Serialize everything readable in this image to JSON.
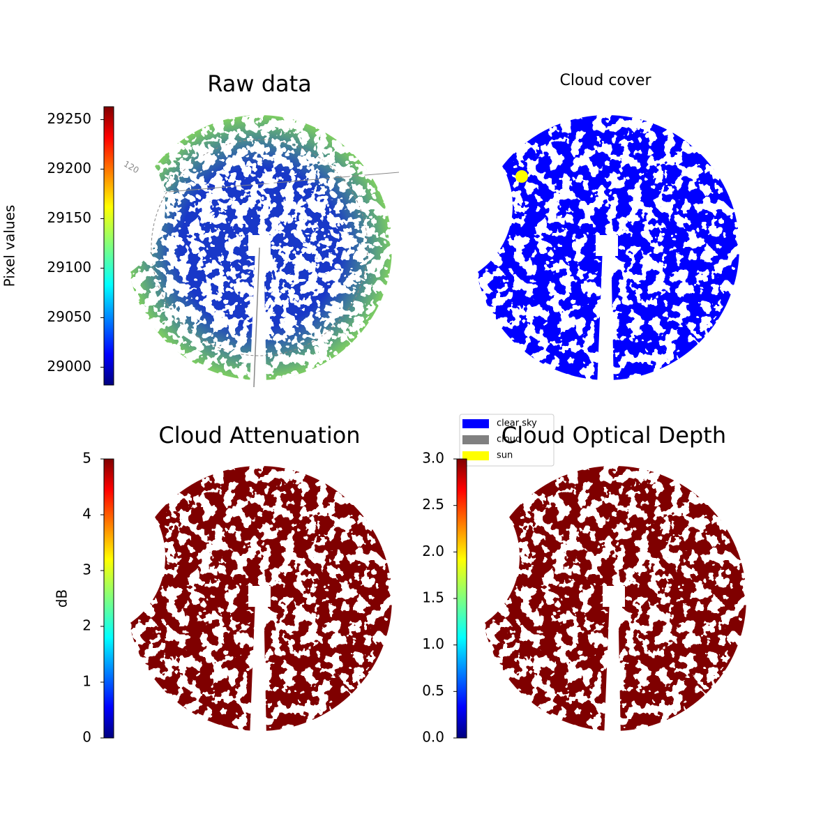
{
  "chart_data": [
    {
      "type": "image",
      "title": "Raw data",
      "colormap": "jet",
      "ylabel": "Pixel values",
      "ylim": [
        28982,
        29263
      ],
      "yticks": [
        29000,
        29050,
        29100,
        29150,
        29200,
        29250
      ],
      "annotations": [
        "120"
      ]
    },
    {
      "type": "image",
      "title": "Cloud cover",
      "series": [
        {
          "name": "clear sky",
          "color": "#0000ff"
        },
        {
          "name": "cloud",
          "color": "#808080"
        },
        {
          "name": "sun",
          "color": "#ffff00"
        }
      ]
    },
    {
      "type": "image",
      "title": "Cloud Attenuation",
      "colormap": "jet",
      "ylabel": "dB",
      "ylim": [
        0,
        5
      ],
      "yticks": [
        0,
        1,
        2,
        3,
        4,
        5
      ]
    },
    {
      "type": "image",
      "title": "Cloud Optical Depth",
      "colormap": "jet",
      "ylim": [
        0,
        3
      ],
      "yticks": [
        {
          "value": 0,
          "label": "0.0"
        },
        {
          "value": 0.5,
          "label": "0.5"
        },
        {
          "value": 1,
          "label": "1.0"
        },
        {
          "value": 1.5,
          "label": "1.5"
        },
        {
          "value": 2,
          "label": "2.0"
        },
        {
          "value": 2.5,
          "label": "2.5"
        },
        {
          "value": 3,
          "label": "3.0"
        }
      ]
    }
  ]
}
